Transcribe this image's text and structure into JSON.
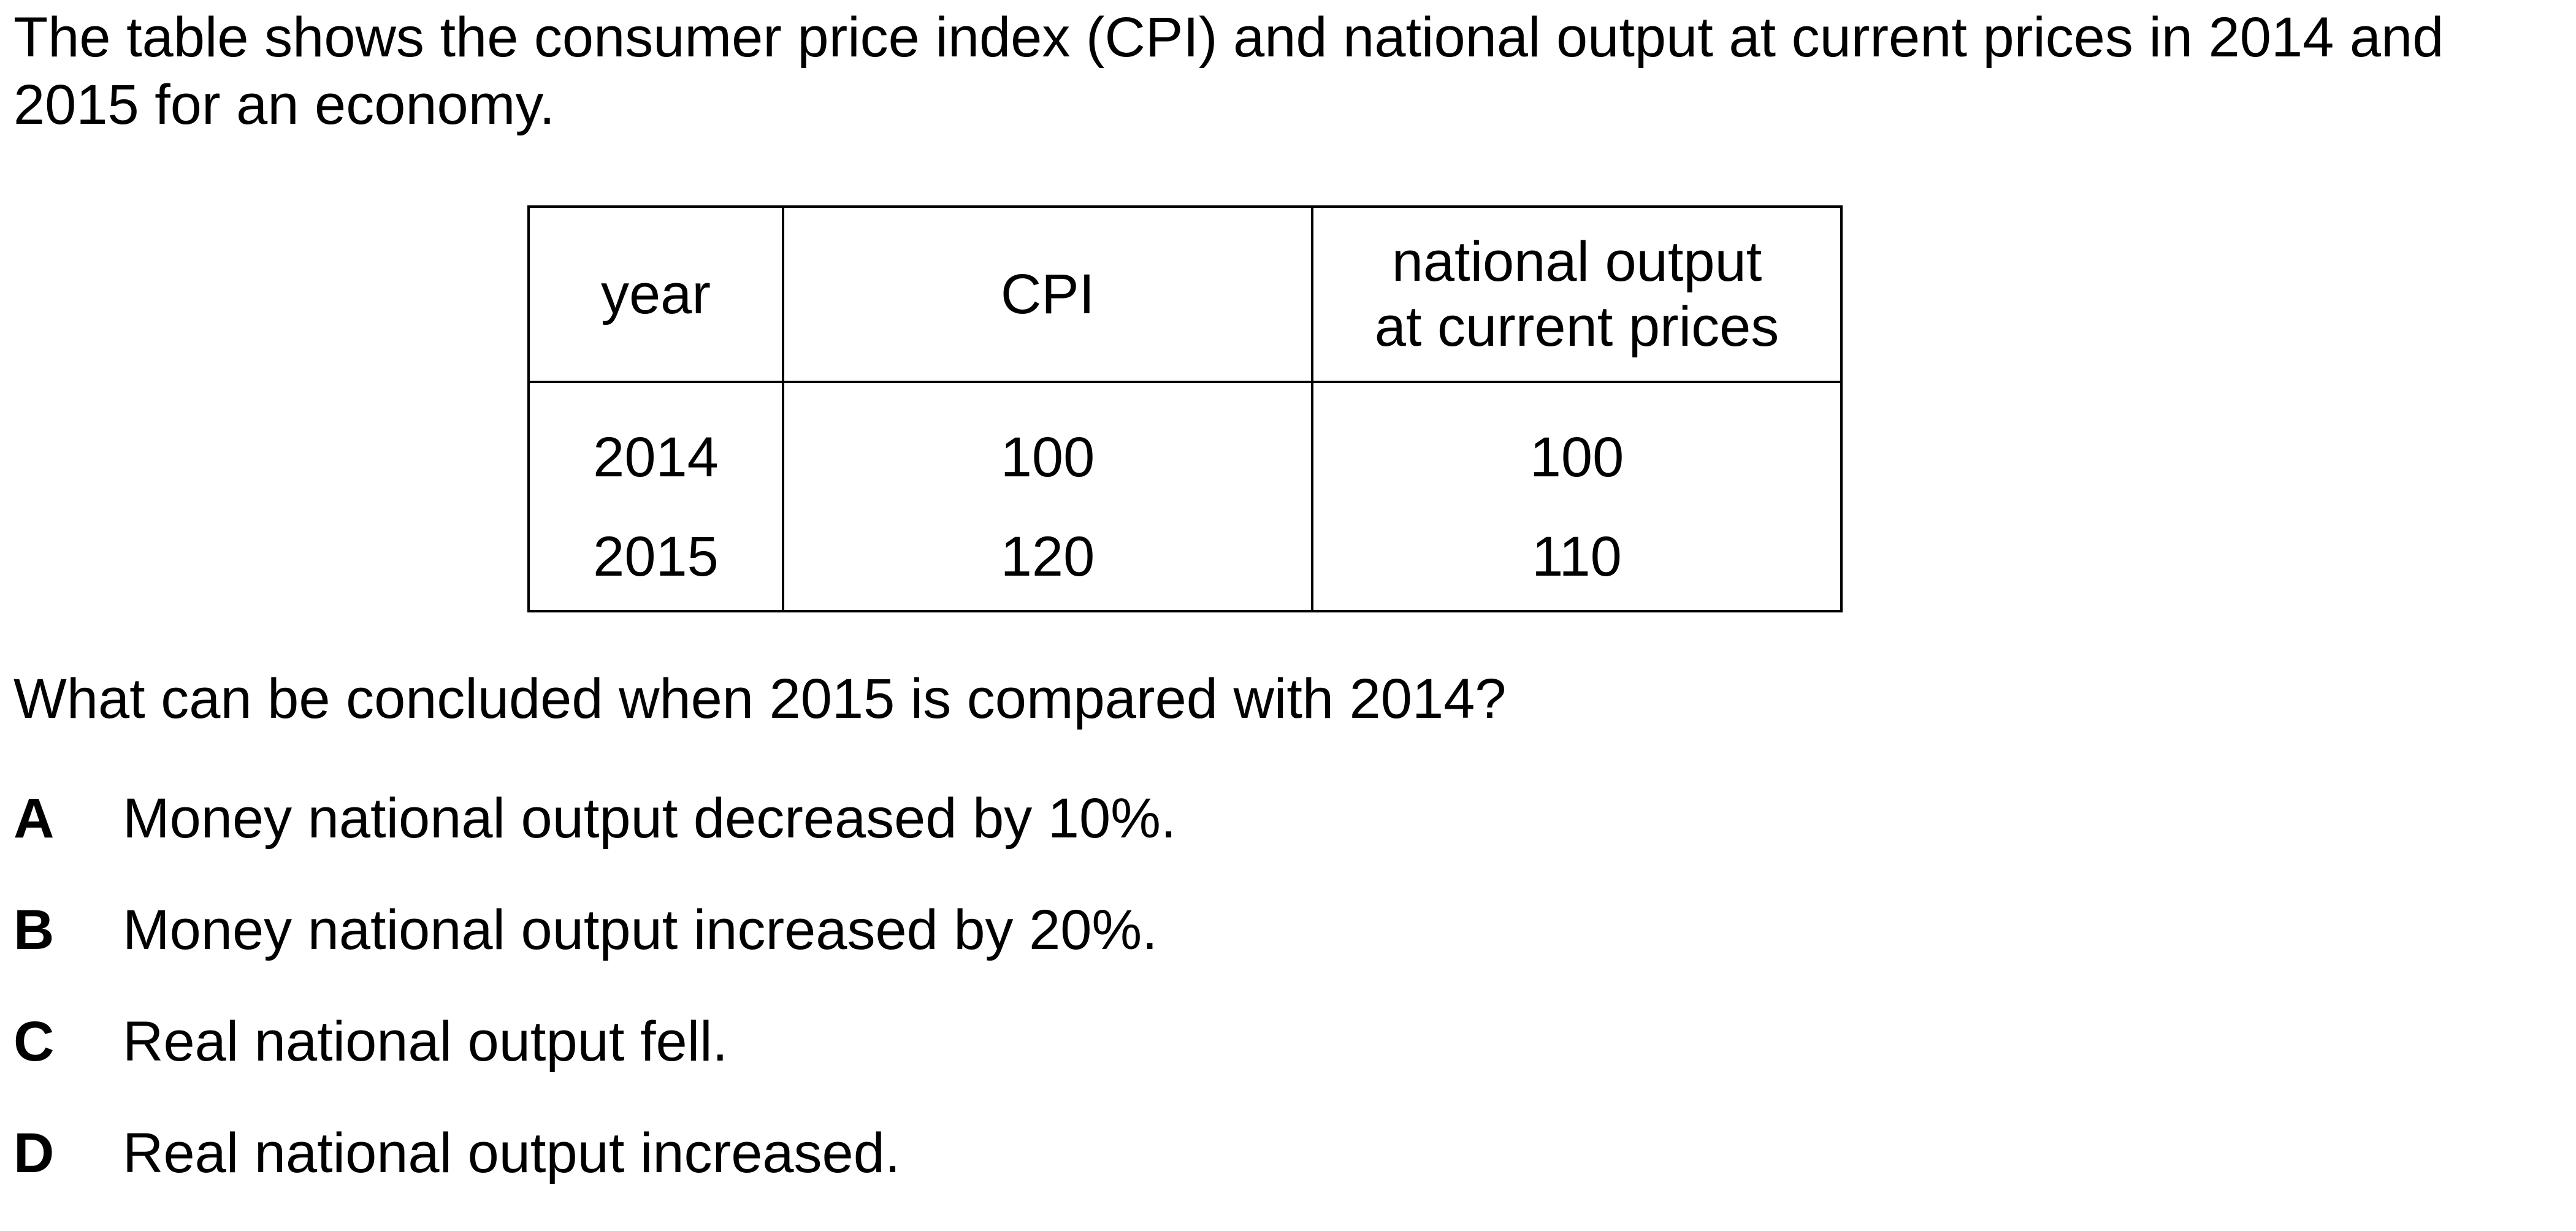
{
  "intro": {
    "line1": "The table shows the consumer price index (CPI) and national output at current prices in 2014 and",
    "line2": "2015 for an economy."
  },
  "table": {
    "headers": {
      "year": "year",
      "cpi": "CPI",
      "output_line1": "national output",
      "output_line2": "at current prices"
    },
    "rows": [
      {
        "year": "2014",
        "cpi": "100",
        "output": "100"
      },
      {
        "year": "2015",
        "cpi": "120",
        "output": "110"
      }
    ]
  },
  "question": "What can be concluded when 2015 is compared with 2014?",
  "options": [
    {
      "letter": "A",
      "text": "Money national output decreased by 10%."
    },
    {
      "letter": "B",
      "text": "Money national output increased by 20%."
    },
    {
      "letter": "C",
      "text": "Real national output fell."
    },
    {
      "letter": "D",
      "text": "Real national output increased."
    }
  ]
}
